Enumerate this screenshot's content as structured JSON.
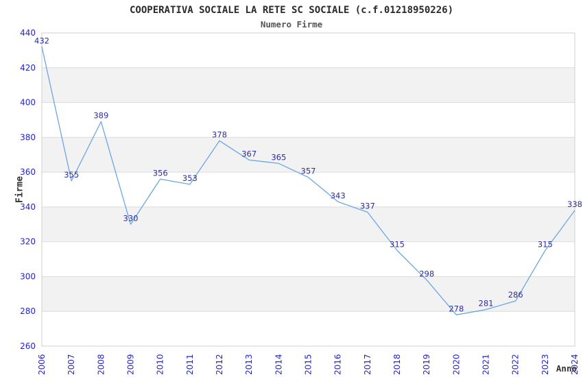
{
  "header": {
    "title": "COOPERATIVA SOCIALE LA RETE SC SOCIALE (c.f.01218950226)",
    "subtitle": "Numero Firme"
  },
  "chart_data": {
    "type": "line",
    "title": "COOPERATIVA SOCIALE LA RETE SC SOCIALE (c.f.01218950226)",
    "subtitle": "Numero Firme",
    "xlabel": "Anno",
    "ylabel": "Firme",
    "x": [
      "2006",
      "2007",
      "2008",
      "2009",
      "2010",
      "2011",
      "2012",
      "2013",
      "2014",
      "2015",
      "2016",
      "2017",
      "2018",
      "2019",
      "2020",
      "2021",
      "2022",
      "2023",
      "2024"
    ],
    "values": [
      432,
      355,
      389,
      330,
      356,
      353,
      378,
      367,
      365,
      357,
      343,
      337,
      315,
      298,
      278,
      281,
      286,
      315,
      338
    ],
    "ylim": [
      260,
      440
    ],
    "ytick_step": 20,
    "yticks": [
      260,
      280,
      300,
      320,
      340,
      360,
      380,
      400,
      420,
      440
    ],
    "legend": "none",
    "grid": "horizontal-bands",
    "point_labels_visible": true,
    "colors": {
      "line": "#6ba6e3",
      "point_label": "#2d2d9e",
      "tick_label": "#2323cd",
      "band": "#f2f2f2",
      "gridline": "#dcdcdc",
      "border": "#cfcfcf",
      "title": "#2a2a2a",
      "subtitle": "#555555",
      "axis_title": "#333333",
      "background": "#ffffff"
    }
  }
}
